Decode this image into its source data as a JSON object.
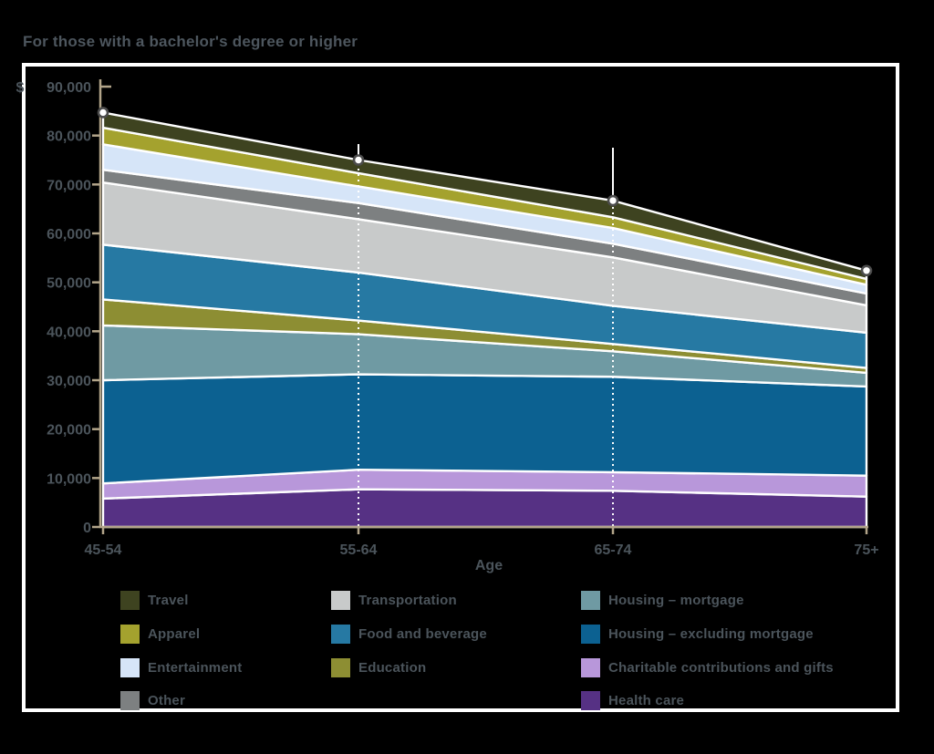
{
  "title": "For those with a bachelor's degree or higher",
  "chart_data": {
    "type": "area",
    "stacked": true,
    "title": "For those with a bachelor's degree or higher",
    "xlabel": "Age",
    "ylabel": "$",
    "categories": [
      "45-54",
      "55-64",
      "65-74",
      "75+"
    ],
    "ylim": [
      0,
      90000
    ],
    "y_tick_labels": [
      "90,000",
      "80,000",
      "70,000",
      "60,000",
      "50,000",
      "40,000",
      "30,000",
      "20,000",
      "10,000",
      "0"
    ],
    "grid": "white dotted vertical guides at interior categories",
    "legend_position": "bottom",
    "series_bottom_to_top": [
      {
        "name": "Health care",
        "color": "#563184",
        "values": [
          5800,
          7700,
          7400,
          6200
        ]
      },
      {
        "name": "Charitable contributions and gifts",
        "color": "#b897da",
        "values": [
          3100,
          4000,
          3800,
          4300
        ]
      },
      {
        "name": "Housing – excluding mortgage",
        "color": "#0c6191",
        "values": [
          21100,
          19500,
          19500,
          18200
        ]
      },
      {
        "name": "Housing – mortgage",
        "color": "#6f9aa3",
        "values": [
          11200,
          8200,
          5200,
          2800
        ]
      },
      {
        "name": "Education",
        "color": "#8d8e33",
        "values": [
          5300,
          2800,
          1500,
          1000
        ]
      },
      {
        "name": "Food and beverage",
        "color": "#2679a3",
        "values": [
          11200,
          9800,
          7800,
          7200
        ]
      },
      {
        "name": "Transportation",
        "color": "#c8caca",
        "values": [
          12700,
          10900,
          9900,
          5600
        ]
      },
      {
        "name": "Other",
        "color": "#7d8081",
        "values": [
          2600,
          3300,
          2800,
          2400
        ]
      },
      {
        "name": "Entertainment",
        "color": "#d6e5f8",
        "values": [
          5200,
          3400,
          3200,
          1800
        ]
      },
      {
        "name": "Apparel",
        "color": "#a4a22e",
        "values": [
          3400,
          2700,
          2200,
          1200
        ]
      },
      {
        "name": "Travel",
        "color": "#3e4320",
        "values": [
          3100,
          2700,
          3400,
          1700
        ]
      }
    ],
    "totals": [
      84700,
      75000,
      66700,
      52400
    ],
    "markers": "white circles with dark gray ring at stack totals",
    "legend_columns": [
      [
        "Travel",
        "Apparel",
        "Entertainment",
        "Other"
      ],
      [
        "Transportation",
        "Food and beverage",
        "Education"
      ],
      [
        "Housing – mortgage",
        "Housing – excluding mortgage",
        "Charitable contributions and gifts",
        "Health care"
      ]
    ]
  },
  "colors": {
    "background": "#000000",
    "frame": "#ffffff",
    "axis": "#b3a58a",
    "text": "#4b545b",
    "guide": "#ffffff",
    "marker_fill": "#ffffff",
    "marker_ring": "#4c4c4c"
  }
}
